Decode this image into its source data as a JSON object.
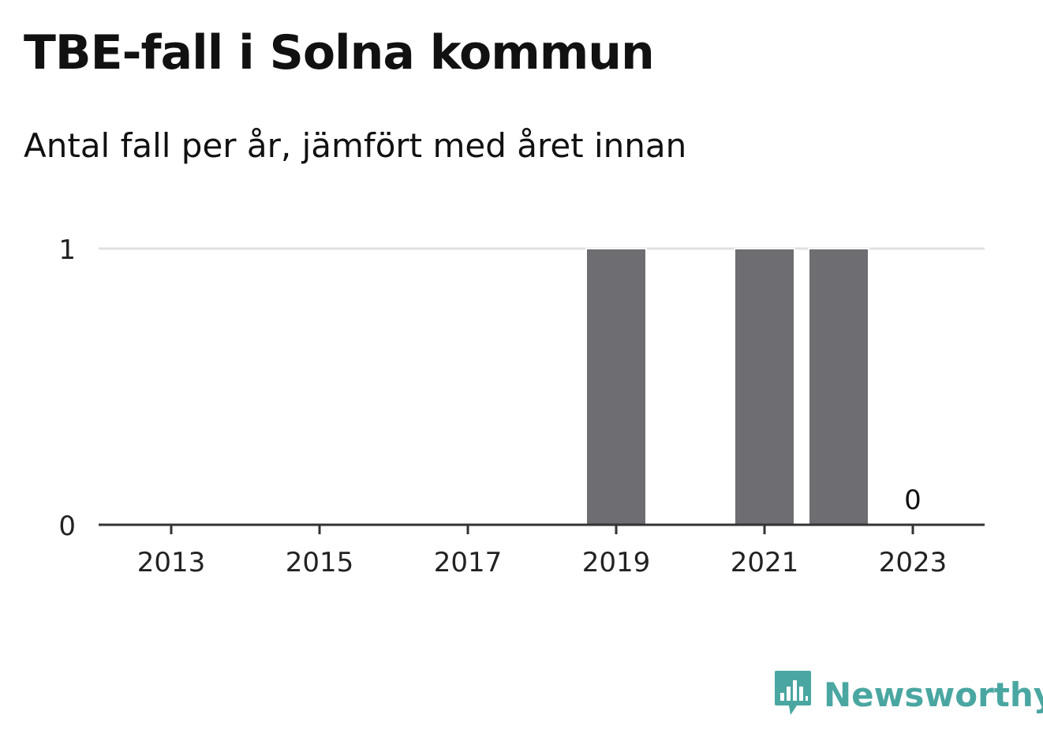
{
  "header": {
    "title": "TBE-fall i Solna kommun",
    "subtitle": "Antal fall per år, jämfört med året innan"
  },
  "brand": {
    "name": "Newsworthy",
    "icon": "newsworthy-logo-icon",
    "color": "#4aa6a1"
  },
  "colors": {
    "bar": "#6e6d72",
    "grid": "#e0e0e0",
    "axis": "#333333"
  },
  "chart_data": {
    "type": "bar",
    "categories": [
      "2012",
      "2013",
      "2014",
      "2015",
      "2016",
      "2017",
      "2018",
      "2019",
      "2020",
      "2021",
      "2022",
      "2023"
    ],
    "values": [
      0,
      0,
      0,
      0,
      0,
      0,
      0,
      1,
      0,
      1,
      1,
      0
    ],
    "x_ticks": [
      "2013",
      "2015",
      "2017",
      "2019",
      "2021",
      "2023"
    ],
    "y_ticks": [
      "0",
      "1"
    ],
    "ylim": [
      0,
      1
    ],
    "grid": true,
    "data_labels": [
      {
        "category": "2023",
        "text": "0"
      }
    ],
    "title": "TBE-fall i Solna kommun",
    "subtitle": "Antal fall per år, jämfört med året innan",
    "xlabel": "",
    "ylabel": ""
  }
}
